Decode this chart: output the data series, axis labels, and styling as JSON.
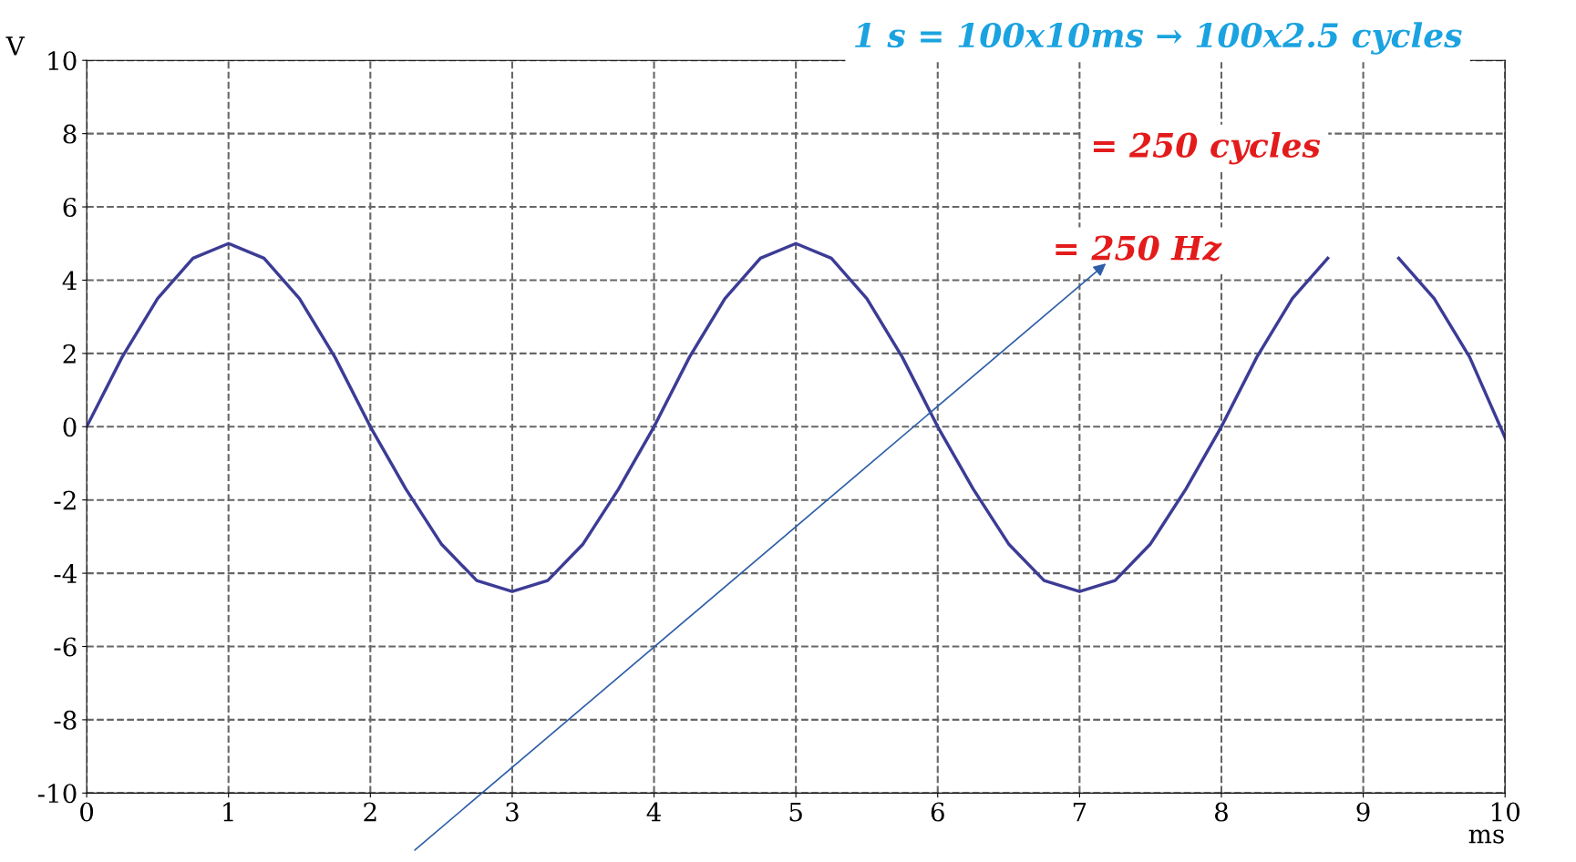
{
  "chart_data": {
    "type": "line",
    "xlabel": "ms",
    "ylabel": "V",
    "x": [
      0,
      0.25,
      0.5,
      0.75,
      1,
      1.25,
      1.5,
      1.75,
      2,
      2.25,
      2.5,
      2.75,
      3,
      3.25,
      3.5,
      3.75,
      4,
      4.25,
      4.5,
      4.75,
      5,
      5.25,
      5.5,
      5.75,
      6,
      6.25,
      6.5,
      6.75,
      7,
      7.25,
      7.5,
      7.75,
      8,
      8.25,
      8.5,
      8.75,
      9,
      9.25,
      9.5,
      9.75,
      10
    ],
    "series": [
      {
        "color": "#3c3c96",
        "values": [
          0,
          1.9,
          3.5,
          4.6,
          5,
          4.6,
          3.5,
          1.9,
          0,
          -1.7,
          -3.2,
          -4.2,
          -4.5,
          -4.2,
          -3.2,
          -1.7,
          0,
          1.9,
          3.5,
          4.6,
          5,
          4.6,
          3.5,
          1.9,
          0,
          -1.7,
          -3.2,
          -4.2,
          -4.5,
          -4.2,
          -3.2,
          -1.7,
          0,
          1.9,
          3.5,
          4.6,
          null,
          4.6,
          3.5,
          1.9,
          -0.3
        ]
      }
    ],
    "xlim": [
      0,
      10
    ],
    "ylim": [
      -10,
      10
    ],
    "xticks": [
      0,
      1,
      2,
      3,
      4,
      5,
      6,
      7,
      8,
      9,
      10
    ],
    "yticks": [
      -10,
      -8,
      -6,
      -4,
      -2,
      0,
      2,
      4,
      6,
      8,
      10
    ],
    "grid": true,
    "line_style": "solid",
    "marker": "none",
    "legend": false,
    "annotations": [
      "1 s = 100x10ms → 100x2.5 cycles",
      "= 250 cycles",
      "= 250 Hz"
    ]
  }
}
